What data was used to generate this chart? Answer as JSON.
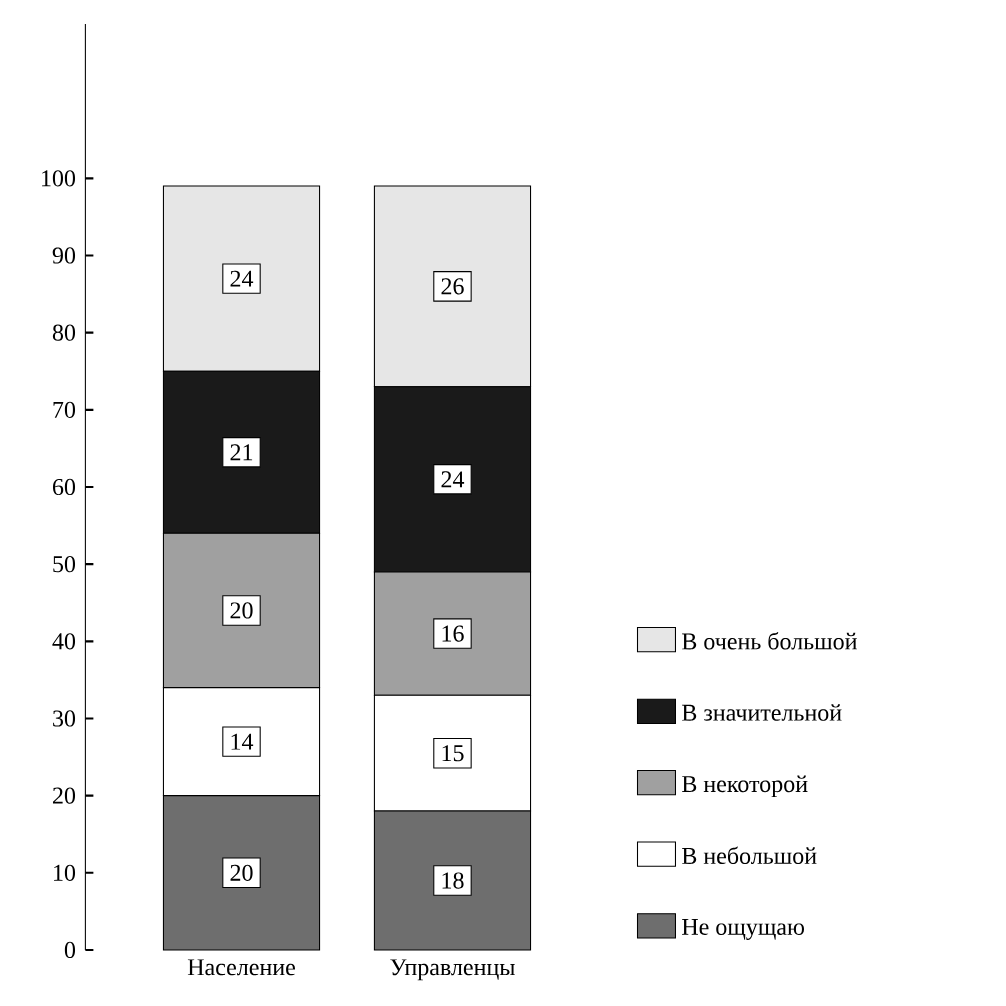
{
  "chart_data": {
    "type": "bar",
    "stacked": true,
    "categories": [
      "Население",
      "Управленцы"
    ],
    "series": [
      {
        "name": "Не ощущаю",
        "color": "#6e6e6e",
        "values": [
          20,
          18
        ]
      },
      {
        "name": "В небольшой",
        "color": "#ffffff",
        "values": [
          14,
          15
        ]
      },
      {
        "name": "В некоторой",
        "color": "#a0a0a0",
        "values": [
          20,
          16
        ]
      },
      {
        "name": "В значительной",
        "color": "#1a1a1a",
        "values": [
          21,
          24
        ]
      },
      {
        "name": "В очень большой",
        "color": "#e6e6e6",
        "values": [
          24,
          26
        ]
      }
    ],
    "ylim": [
      0,
      120
    ],
    "yticks": [
      0,
      10,
      20,
      30,
      40,
      50,
      60,
      70,
      80,
      90,
      100
    ],
    "data_labels": true,
    "legend": "right",
    "grid": false
  }
}
